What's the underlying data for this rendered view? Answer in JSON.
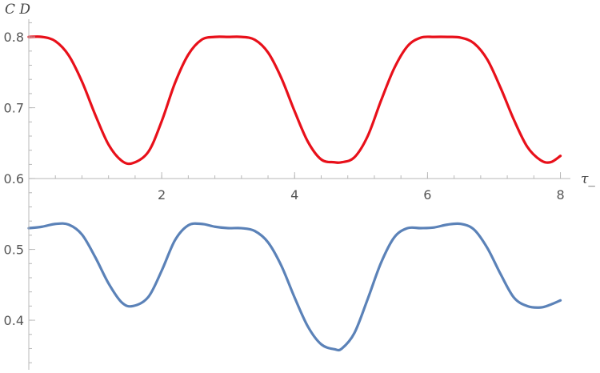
{
  "chart_data": {
    "type": "line",
    "ylabel": "C D",
    "xlabel": "τ_",
    "xlim": [
      0,
      8.15
    ],
    "ylim": [
      0.33,
      0.825
    ],
    "x_axis_crossing_y": 0.6,
    "x_ticks": [
      2,
      4,
      6,
      8
    ],
    "x_tick_labels": [
      "2",
      "4",
      "6",
      "8"
    ],
    "y_ticks": [
      0.4,
      0.5,
      0.6,
      0.7,
      0.8
    ],
    "y_tick_labels": [
      "0.4",
      "0.5",
      "0.6",
      "0.7",
      "0.8"
    ],
    "grid": false,
    "series": [
      {
        "color": "#e8101a",
        "x": [
          0,
          0.2,
          0.4,
          0.6,
          0.8,
          1.0,
          1.2,
          1.4,
          1.57,
          1.8,
          2.0,
          2.2,
          2.4,
          2.6,
          2.8,
          3.0,
          3.2,
          3.4,
          3.6,
          3.8,
          4.0,
          4.2,
          4.4,
          4.6,
          4.71,
          4.9,
          5.1,
          5.3,
          5.5,
          5.7,
          5.9,
          6.1,
          6.3,
          6.5,
          6.7,
          6.9,
          7.1,
          7.3,
          7.5,
          7.7,
          7.85,
          8.0
        ],
        "values": [
          0.8,
          0.8,
          0.794,
          0.774,
          0.737,
          0.69,
          0.648,
          0.625,
          0.622,
          0.638,
          0.681,
          0.735,
          0.775,
          0.796,
          0.8,
          0.8,
          0.8,
          0.796,
          0.778,
          0.742,
          0.695,
          0.652,
          0.627,
          0.623,
          0.623,
          0.63,
          0.66,
          0.71,
          0.756,
          0.787,
          0.799,
          0.8,
          0.8,
          0.799,
          0.791,
          0.768,
          0.728,
          0.683,
          0.645,
          0.626,
          0.623,
          0.632
        ]
      },
      {
        "color": "#5b82b8",
        "x": [
          0,
          0.2,
          0.4,
          0.6,
          0.8,
          1.0,
          1.2,
          1.4,
          1.57,
          1.8,
          2.0,
          2.2,
          2.4,
          2.6,
          2.8,
          3.0,
          3.2,
          3.4,
          3.6,
          3.8,
          4.0,
          4.2,
          4.4,
          4.6,
          4.71,
          4.9,
          5.1,
          5.3,
          5.5,
          5.7,
          5.9,
          6.1,
          6.3,
          6.5,
          6.7,
          6.9,
          7.1,
          7.3,
          7.5,
          7.7,
          7.85,
          8.0
        ],
        "values": [
          0.53,
          0.532,
          0.536,
          0.535,
          0.521,
          0.489,
          0.452,
          0.425,
          0.42,
          0.433,
          0.47,
          0.513,
          0.534,
          0.536,
          0.532,
          0.53,
          0.53,
          0.526,
          0.51,
          0.477,
          0.432,
          0.391,
          0.366,
          0.359,
          0.36,
          0.382,
          0.43,
          0.481,
          0.517,
          0.53,
          0.53,
          0.531,
          0.535,
          0.536,
          0.528,
          0.502,
          0.465,
          0.432,
          0.42,
          0.418,
          0.422,
          0.428
        ]
      }
    ]
  }
}
